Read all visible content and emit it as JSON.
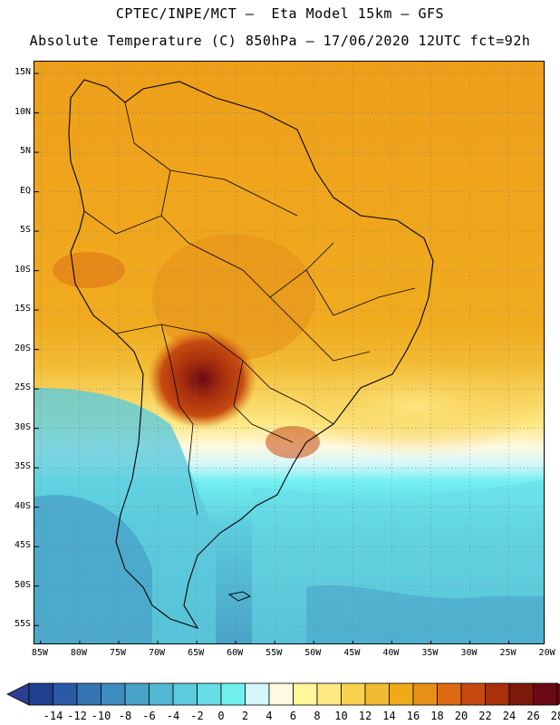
{
  "header": {
    "line1": "CPTEC/INPE/MCT –  Eta Model 15km – GFS",
    "line2": "Absolute Temperature (C) 850hPa – 17/06/2020 12UTC fct=92h"
  },
  "axes": {
    "lat_labels": [
      "15N",
      "10N",
      "5N",
      "EQ",
      "5S",
      "10S",
      "15S",
      "20S",
      "25S",
      "30S",
      "35S",
      "40S",
      "45S",
      "50S",
      "55S"
    ],
    "lat_values": [
      15,
      10,
      5,
      0,
      -5,
      -10,
      -15,
      -20,
      -25,
      -30,
      -35,
      -40,
      -45,
      -50,
      -55
    ],
    "lon_labels": [
      "85W",
      "80W",
      "75W",
      "70W",
      "65W",
      "60W",
      "55W",
      "50W",
      "45W",
      "40W",
      "35W",
      "30W",
      "25W",
      "20W"
    ],
    "lon_values": [
      -85,
      -80,
      -75,
      -70,
      -65,
      -60,
      -55,
      -50,
      -45,
      -40,
      -35,
      -30,
      -25,
      -20
    ],
    "lat_range": [
      -57.5,
      16.5
    ],
    "lon_range": [
      -85.8,
      -20.3
    ]
  },
  "colorbar": {
    "labels": [
      "-14",
      "-12",
      "-10",
      "-8",
      "-6",
      "-4",
      "-2",
      "0",
      "2",
      "4",
      "6",
      "8",
      "10",
      "12",
      "14",
      "16",
      "18",
      "20",
      "22",
      "24",
      "26",
      "28"
    ],
    "colors": [
      "#1f3f8f",
      "#2a5aa6",
      "#3575b3",
      "#3f8cc0",
      "#49a3c8",
      "#52b7d2",
      "#5ccbdc",
      "#67dde6",
      "#72f0f0",
      "#d4f7fa",
      "#fff8e2",
      "#fff79a",
      "#fde882",
      "#f8d24e",
      "#f2bb34",
      "#eeaa18",
      "#e6901a",
      "#dd6a13",
      "#c64a10",
      "#a8300c",
      "#7e1a0b",
      "#6a0a14"
    ],
    "arrow_low": "#2b3f93",
    "arrow_high": "#6a0a14"
  },
  "map": {
    "ocean_south_colors": [
      "#49a3c8",
      "#52b7d2",
      "#5ccbdc",
      "#67dde6",
      "#72f0f0"
    ],
    "tropical_color": "#eeaa18",
    "hot_spot_color": "#7e1a0b"
  }
}
